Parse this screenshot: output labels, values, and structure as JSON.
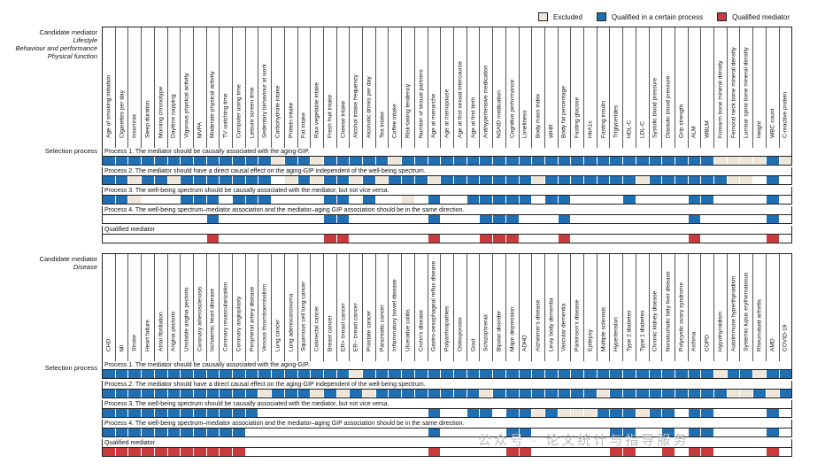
{
  "legend": {
    "excluded": "Excluded",
    "qualified_process": "Qualified in a certain process",
    "qualified_mediator": "Qualified mediator",
    "colors": {
      "excluded": "#ede6d9",
      "process": "#1f6fb2",
      "mediator": "#c83a3c",
      "none": "#ffffff"
    }
  },
  "panel1": {
    "label_title": "Candidate mediator",
    "label_sub1": "Lifestyle",
    "label_sub2": "Behaviour and performance",
    "label_sub3": "Physical function",
    "selection_label": "Selection process",
    "columns": [
      "Age of smoking initiation",
      "Cigarettes per day",
      "Insomnia",
      "Sleep duration",
      "Morning chronotype",
      "Daytime napping",
      "Vigorous physical activity",
      "MVPA",
      "Moderate physical activity",
      "TV watching time",
      "Computer using time",
      "Leisure screen time",
      "Sedentary behaviour at work",
      "Carbohydrate intake",
      "Protein intake",
      "Fat intake",
      "Raw vegetable intake",
      "Fresh fruit intake",
      "Cheese intake",
      "Alcohol intake frequency",
      "Alcoholic drinks per day",
      "Tea intake",
      "Coffee intake",
      "Risk-taking tendency",
      "Number of sexual partners",
      "Age at menarche",
      "Age at menopause",
      "Age at first sexual intercourse",
      "Age at first birth",
      "Antihypertensive medication",
      "NSAID medication",
      "Cognitive performance",
      "Loneliness",
      "Body mass index",
      "WHR",
      "Body fat percentage",
      "Fasting glucose",
      "HbA1c",
      "Fasting insulin",
      "Triglycerides",
      "HDL-C",
      "LDL-C",
      "Systolic blood pressure",
      "Diastolic blood pressure",
      "Grip strength",
      "ALM",
      "WBLM",
      "Forearm bone mineral density",
      "Femoral neck bone mineral density",
      "Lumbar spine bone mineral density",
      "Height",
      "WBC count",
      "C-reactive protein"
    ],
    "processes": [
      {
        "title": "Process 1. The mediator should be causally associated with the aging-GIP.",
        "cells": "PPPPPPPPPPPPPEPPEPPPPPEPPPPPPPPPPPPPPPPPPPPPPPPEEEEPE"
      },
      {
        "title": "Process 2. The mediator should have a direct causal effect on the aging-GIP independent of the well-being spectrum.",
        "cells": "PPEPPEPPPPPPPNEPEPPEPEPPPEPPPPPPPEPPPPPPPEPPPPPPEENPN"
      },
      {
        "title": "Process 3. The well-being spectrum should be causally associated with the mediator, but not vice versa.",
        "cells": "PPENNNPPPNPPPNNNNPPNPNNENPNNPPPPPNPPNNNNPNNNNPPNNNNPN"
      },
      {
        "title": "Process 4. The well-being spectrum–mediator association and the mediator–aging GIP association should be in the same direction.",
        "cells": "NNNNNNNNPNNNNNNNNPPNNNNNNPNNNPPPNNNPNNNNNNNNNPNNNNNPN"
      },
      {
        "title": "Qualified mediator",
        "cells": "NNNNNNNNMNNNNNNNNMMNNNNNNMNNNMMMNNNMNNNNNNNNNMNNNNNMN"
      }
    ]
  },
  "panel2": {
    "label_title": "Candidate mediator",
    "label_sub1": "Disease",
    "selection_label": "Selection process",
    "columns": [
      "CHD",
      "MI",
      "Stroke",
      "Heart failure",
      "Atrial fibrillation",
      "Angina pectoris",
      "Unstable angina pectoris",
      "Coronary atherosclerosis",
      "Ischaemic heart disease",
      "Coronary revascularization",
      "Coronary angioplasty",
      "Peripheral artery disease",
      "Venous thromboembolism",
      "Lung cancer",
      "Lung adenocarcinoma",
      "Squamous cell lung cancer",
      "Colorectal cancer",
      "Breast cancer",
      "ER+ breast cancer",
      "ER− breast cancer",
      "Prostate cancer",
      "Pancreatic cancer",
      "Inflammatory bowel disease",
      "Ulcerative colitis",
      "Crohn's disease",
      "Gastro-oesophageal reflux disease",
      "Polyarthropathies",
      "Osteoporosis",
      "Gout",
      "Schizophrenia",
      "Bipolar disorder",
      "Major depression",
      "ADHD",
      "Alzheimer's disease",
      "Lewy body dementia",
      "Vascular dementia",
      "Parkinson's disease",
      "Epilepsy",
      "Multiple sclerosis",
      "Hypertension",
      "Type 2 diabetes",
      "Type 1 diabetes",
      "Chronic kidney disease",
      "Nonalcoholic fatty liver disease",
      "Polycystic ovary syndrome",
      "Asthma",
      "COPD",
      "Hypothyroidism",
      "Autoimmune hyperthyroidism",
      "Systemic lupus erythematosus",
      "Rheumatoid arthritis",
      "AMD",
      "COVID-19"
    ],
    "processes": [
      {
        "title": "Process 1. The mediator should be causally associated with the aging-GIP.",
        "cells": "PPPPPPPPPPPPPPPPPPPEPPPPPPPPPPPPPPPPPPPPPPPPPPPEPPEPP"
      },
      {
        "title": "Process 2. The mediator should have a direct causal effect on the aging-GIP independent of the well-being spectrum.",
        "cells": "PPPPPPPPPPPPEPPPEPEPEPPPPPPPPEPPPPPPPPEPPPPPPPPPEEPEP"
      },
      {
        "title": "Process 3. The well-being spectrum should be causally associated with the mediator, but not vice versa.",
        "cells": "PPPPPPPPPPPPNNNNNNNNNNNNNPNNPPNPPEPEEEPPPEPPNPPNNNNPN"
      },
      {
        "title": "Process 4. The well-being spectrum–mediator association and the mediator–aging GIP association should be in the same direction.",
        "cells": "PPPPPPPPPPPNNNNNNNNNNNNNNPNNNNNPPNNNNNNPPNNPNPPNNNNPN"
      },
      {
        "title": "Qualified mediator",
        "cells": "MMMMMMMMMMMNNNNNNNNNNNNNNMNNNNNMMNNNNNNMMNNMNMMNNNNMN"
      }
    ]
  },
  "watermark": "公众号 · 论文统计与指导服务"
}
